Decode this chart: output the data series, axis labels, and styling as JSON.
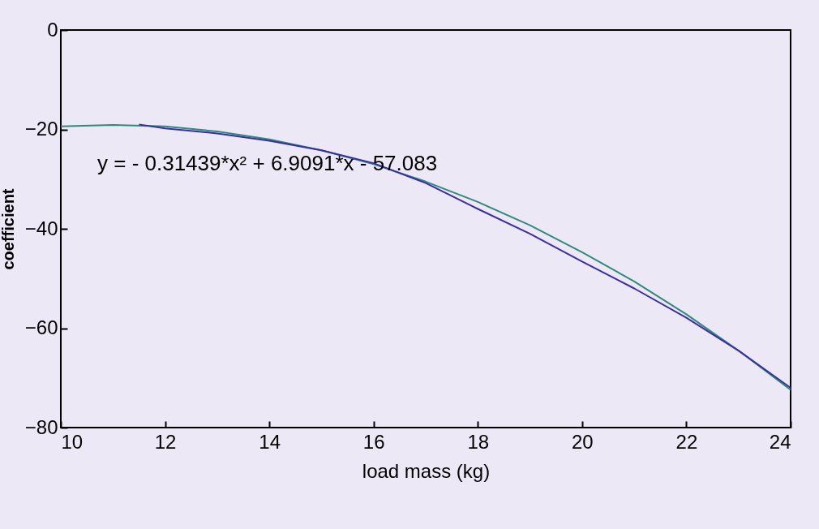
{
  "chart_data": {
    "type": "line",
    "xlabel": "load mass  (kg)",
    "ylabel": "coefficient",
    "xlim": [
      10,
      24
    ],
    "xticks": [
      10,
      12,
      14,
      16,
      18,
      20,
      22,
      24
    ],
    "ylim": [
      -80,
      0
    ],
    "yticks": [
      -80,
      -60,
      -40,
      -20,
      0
    ],
    "grid": false,
    "marker": "none",
    "line_style": "solid",
    "annotations": [
      "y = - 0.31439*x² + 6.9091*x - 57.083"
    ],
    "series": [
      {
        "color": "#2f8a7c",
        "x": [
          10,
          11,
          12,
          13,
          14,
          15,
          16,
          17,
          18,
          19,
          20,
          21,
          22,
          23,
          24
        ],
        "values": [
          -19.4,
          -19.1,
          -19.4,
          -20.4,
          -22,
          -24.2,
          -27,
          -30.5,
          -34.6,
          -39.3,
          -44.7,
          -50.6,
          -57.2,
          -64.5,
          -72.4
        ]
      },
      {
        "color": "#3a2fa0",
        "x": [
          11.5,
          12,
          13,
          14,
          15,
          16,
          17,
          18,
          19,
          20,
          21,
          22,
          23,
          24
        ],
        "values": [
          -19,
          -19.8,
          -20.8,
          -22.3,
          -24.2,
          -26.8,
          -30.8,
          -36,
          -41,
          -46.6,
          -52,
          -57.9,
          -64.5,
          -72
        ]
      }
    ]
  }
}
